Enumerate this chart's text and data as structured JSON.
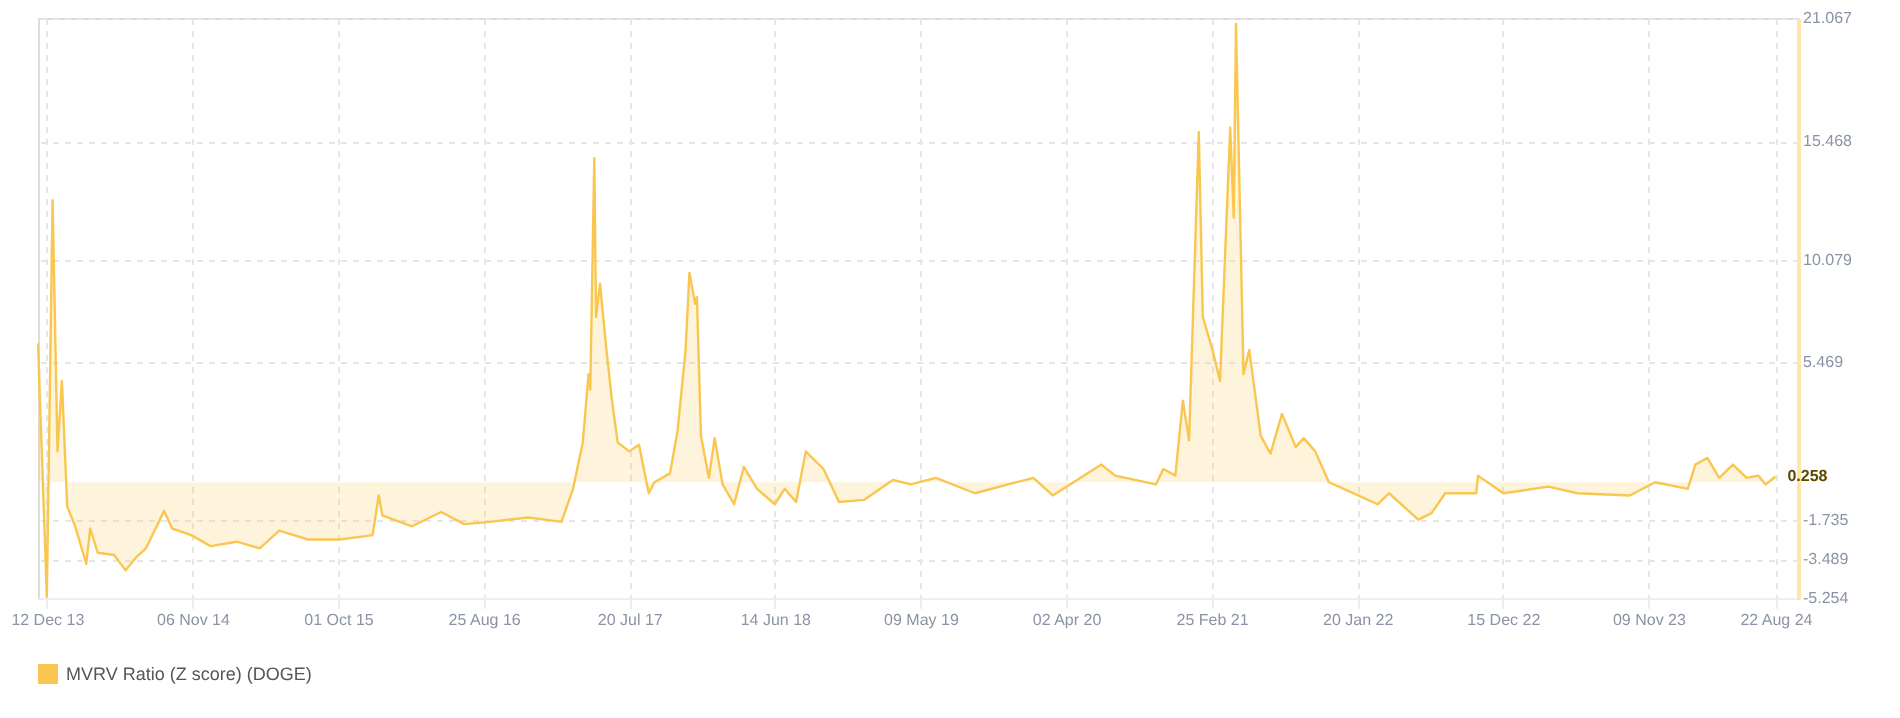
{
  "chart_data": {
    "type": "area",
    "legend": "bottom",
    "grid": true,
    "line_style": "solid",
    "xlim": [
      "2013-11-22",
      "2024-10-12"
    ],
    "ylim": [
      -5.254,
      21.067
    ],
    "yticks": [
      21.067,
      15.468,
      10.079,
      5.469,
      -1.735,
      -3.489,
      -5.254
    ],
    "xticks": [
      {
        "value": "2013-12-12",
        "label": "12 Dec 13"
      },
      {
        "value": "2014-11-06",
        "label": "06 Nov 14"
      },
      {
        "value": "2015-10-01",
        "label": "01 Oct 15"
      },
      {
        "value": "2016-08-25",
        "label": "25 Aug 16"
      },
      {
        "value": "2017-07-20",
        "label": "20 Jul 17"
      },
      {
        "value": "2018-06-14",
        "label": "14 Jun 18"
      },
      {
        "value": "2019-05-09",
        "label": "09 May 19"
      },
      {
        "value": "2020-04-02",
        "label": "02 Apr 20"
      },
      {
        "value": "2021-02-25",
        "label": "25 Feb 21"
      },
      {
        "value": "2022-01-20",
        "label": "20 Jan 22"
      },
      {
        "value": "2022-12-15",
        "label": "15 Dec 22"
      },
      {
        "value": "2023-11-09",
        "label": "09 Nov 23"
      },
      {
        "value": "2024-08-22",
        "label": "22 Aug 24"
      }
    ],
    "annotations": [
      {
        "text": "0.258",
        "x": "2024-08-22",
        "y": 0.258
      }
    ],
    "x": [
      "2013-11-22",
      "2013-12-12",
      "2013-12-25",
      "2014-01-05",
      "2014-01-15",
      "2014-01-27",
      "2014-02-14",
      "2014-03-11",
      "2014-03-20",
      "2014-04-06",
      "2014-05-13",
      "2014-06-08",
      "2014-07-02",
      "2014-07-24",
      "2014-09-03",
      "2014-09-21",
      "2014-11-03",
      "2014-12-17",
      "2015-02-14",
      "2015-04-07",
      "2015-05-21",
      "2015-07-25",
      "2015-10-05",
      "2015-12-18",
      "2016-01-01",
      "2016-01-09",
      "2016-03-16",
      "2016-05-21",
      "2016-07-12",
      "2016-09-08",
      "2016-12-04",
      "2017-02-17",
      "2017-03-15",
      "2017-04-06",
      "2017-04-19",
      "2017-04-23",
      "2017-05-02",
      "2017-05-06",
      "2017-05-15",
      "2017-05-29",
      "2017-06-11",
      "2017-06-24",
      "2017-07-20",
      "2017-08-11",
      "2017-09-02",
      "2017-09-15",
      "2017-10-20",
      "2017-11-06",
      "2017-11-24",
      "2017-12-03",
      "2017-12-16",
      "2017-12-20",
      "2017-12-29",
      "2018-01-16",
      "2018-01-29",
      "2018-02-16",
      "2018-03-14",
      "2018-04-05",
      "2018-05-05",
      "2018-06-14",
      "2018-07-06",
      "2018-08-01",
      "2018-08-23",
      "2018-10-02",
      "2018-11-06",
      "2019-01-02",
      "2019-03-08",
      "2019-04-17",
      "2019-06-13",
      "2019-09-09",
      "2020-01-19",
      "2020-03-03",
      "2020-06-21",
      "2020-07-22",
      "2020-10-22",
      "2020-11-08",
      "2020-12-05",
      "2020-12-22",
      "2021-01-05",
      "2021-01-27",
      "2021-02-05",
      "2021-02-27",
      "2021-03-16",
      "2021-04-08",
      "2021-04-16",
      "2021-04-21",
      "2021-05-08",
      "2021-05-21",
      "2021-06-16",
      "2021-07-08",
      "2021-08-03",
      "2021-09-03",
      "2021-09-21",
      "2021-10-17",
      "2021-11-17",
      "2022-01-22",
      "2022-03-07",
      "2022-04-02",
      "2022-06-07",
      "2022-07-07",
      "2022-08-07",
      "2022-10-16",
      "2022-10-20",
      "2022-12-16",
      "2023-03-28",
      "2023-06-02",
      "2023-09-28",
      "2023-11-24",
      "2024-02-06",
      "2024-02-23",
      "2024-03-21",
      "2024-04-17",
      "2024-05-18",
      "2024-06-18",
      "2024-07-14",
      "2024-07-31",
      "2024-08-22"
    ],
    "series": [
      {
        "name": "MVRV Ratio (Z score) (DOGE)",
        "color": "#f9c74f",
        "values": [
          6.3,
          -5.2,
          12.8,
          1.4,
          4.6,
          -1.1,
          -2.0,
          -3.7,
          -2.1,
          -3.2,
          -3.3,
          -4.0,
          -3.4,
          -3.0,
          -1.3,
          -2.1,
          -2.4,
          -2.9,
          -2.7,
          -3.0,
          -2.2,
          -2.6,
          -2.6,
          -2.4,
          -0.6,
          -1.5,
          -2.0,
          -1.35,
          -1.9,
          -1.8,
          -1.6,
          -1.8,
          -0.3,
          1.8,
          4.9,
          4.2,
          14.7,
          7.5,
          9.0,
          6.1,
          3.7,
          1.8,
          1.4,
          1.7,
          -0.5,
          0.0,
          0.4,
          2.3,
          5.9,
          9.5,
          8.1,
          8.4,
          2.1,
          0.2,
          2.0,
          -0.1,
          -1.0,
          0.7,
          -0.3,
          -1.0,
          -0.3,
          -0.9,
          1.4,
          0.6,
          -0.9,
          -0.8,
          0.1,
          -0.1,
          0.2,
          -0.5,
          0.2,
          -0.6,
          0.8,
          0.3,
          -0.1,
          0.6,
          0.3,
          3.7,
          1.9,
          15.9,
          7.5,
          6.0,
          4.6,
          16.1,
          12.0,
          20.8,
          4.9,
          6.0,
          2.1,
          1.3,
          3.1,
          1.6,
          2.0,
          1.4,
          0.0,
          -0.6,
          -1.0,
          -0.5,
          -1.7,
          -1.4,
          -0.5,
          -0.5,
          0.3,
          -0.5,
          -0.2,
          -0.5,
          -0.6,
          0.0,
          -0.3,
          0.8,
          1.1,
          0.2,
          0.8,
          0.2,
          0.3,
          -0.1,
          0.258
        ]
      }
    ]
  }
}
